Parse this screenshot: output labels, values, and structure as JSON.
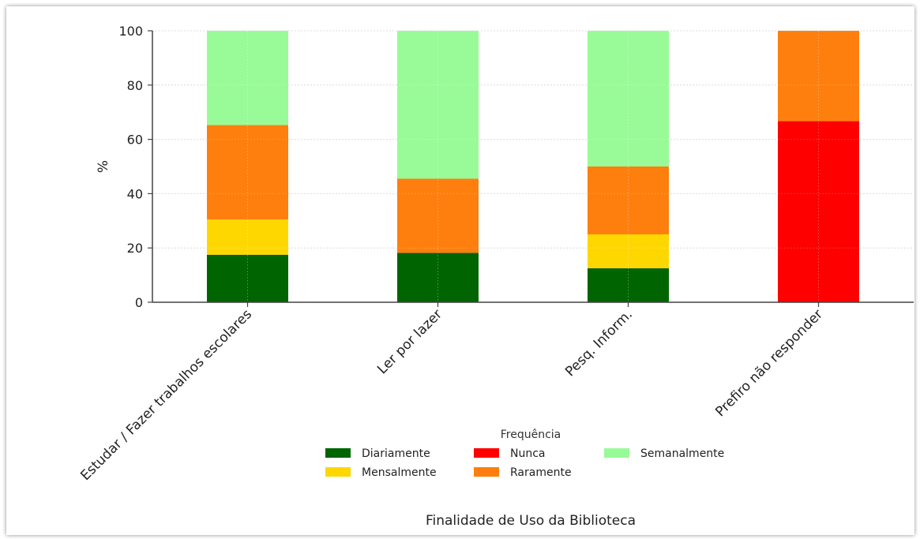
{
  "chart_data": {
    "type": "bar",
    "stacked": true,
    "categories": [
      "Estudar / Fazer trabalhos escolares",
      "Ler por lazer",
      "Pesq. Inform.",
      "Prefiro não responder"
    ],
    "series": [
      {
        "name": "Diariamente",
        "color": "#006400",
        "values": [
          17.5,
          18.2,
          12.5,
          0
        ]
      },
      {
        "name": "Mensalmente",
        "color": "#FFD700",
        "values": [
          13.0,
          0,
          12.5,
          0
        ]
      },
      {
        "name": "Nunca",
        "color": "#FF0000",
        "values": [
          0,
          0,
          0,
          66.7
        ]
      },
      {
        "name": "Raramente",
        "color": "#FF7F0E",
        "values": [
          34.8,
          27.3,
          25.0,
          33.3
        ]
      },
      {
        "name": "Semanalmente",
        "color": "#98FB98",
        "values": [
          34.7,
          54.5,
          50.0,
          0
        ]
      }
    ],
    "title": "",
    "xlabel": "Finalidade de Uso da Biblioteca",
    "ylabel": "%",
    "ylim": [
      0,
      100
    ],
    "yticks": [
      0,
      20,
      40,
      60,
      80,
      100
    ],
    "grid": true,
    "legend": {
      "title": "Frequência",
      "placement": "bottom-center",
      "columns": 3
    }
  }
}
